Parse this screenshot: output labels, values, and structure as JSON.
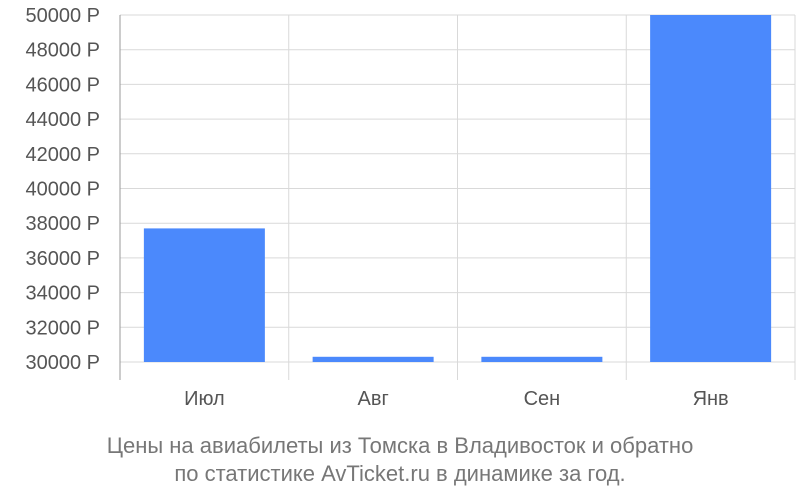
{
  "chart_data": {
    "type": "bar",
    "categories": [
      "Июл",
      "Авг",
      "Сен",
      "Янв"
    ],
    "values": [
      37700,
      30300,
      30300,
      50000
    ],
    "ylim": [
      30000,
      50000
    ],
    "yticks": [
      30000,
      32000,
      34000,
      36000,
      38000,
      40000,
      42000,
      44000,
      46000,
      48000,
      50000
    ],
    "ytick_suffix": " Р",
    "grid": true,
    "bar_color": "#4b89fc",
    "grid_color": "#d9d9d9",
    "axis_color": "#999999",
    "tick_label_color": "#555555",
    "caption_lines": [
      "Цены на авиабилеты из Томска в Владивосток и обратно",
      "по статистике AvTicket.ru в динамике за год."
    ]
  }
}
